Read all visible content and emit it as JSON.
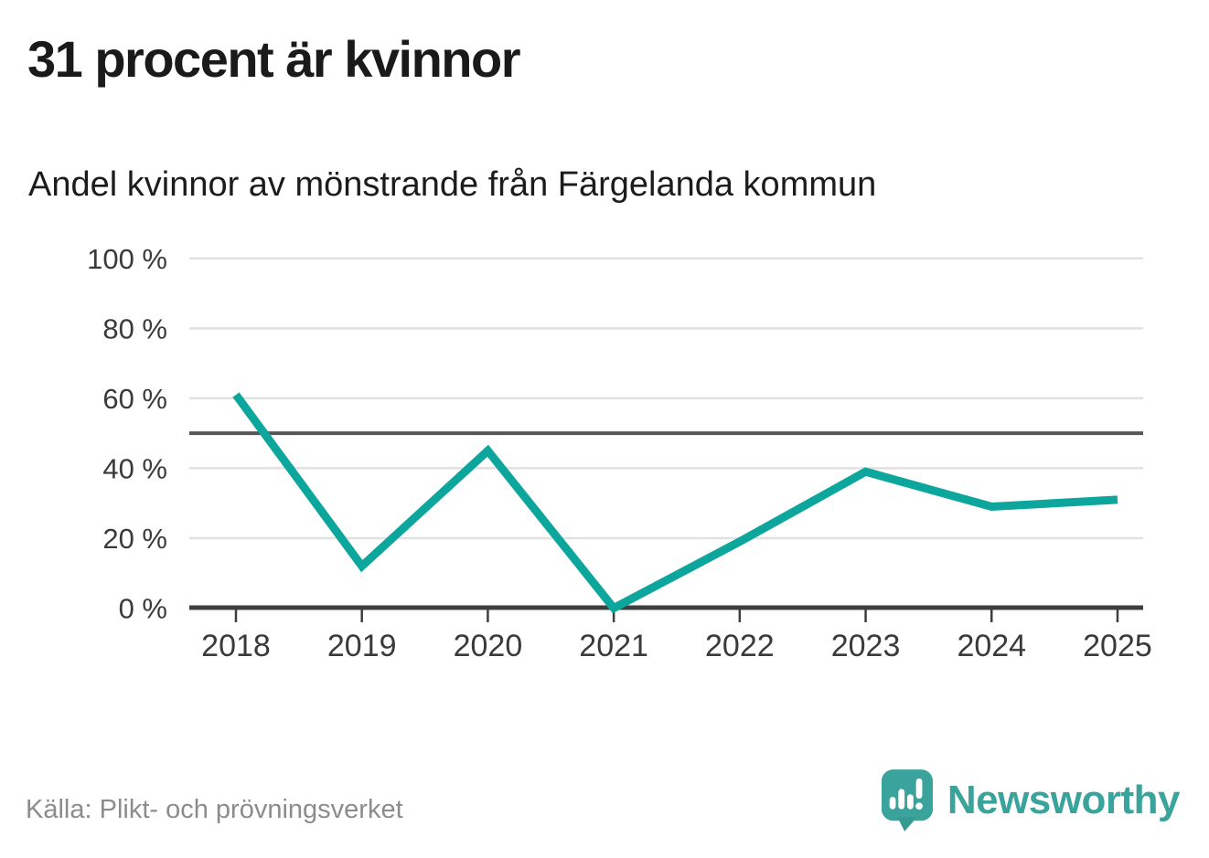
{
  "header": {
    "title": "31 procent är kvinnor",
    "subtitle": "Andel kvinnor av mönstrande från Färgelanda kommun"
  },
  "chart_data": {
    "type": "line",
    "title": "31 procent är kvinnor",
    "subtitle": "Andel kvinnor av mönstrande från Färgelanda kommun",
    "x": [
      2018,
      2019,
      2020,
      2021,
      2022,
      2023,
      2024,
      2025
    ],
    "series": [
      {
        "name": "Andel kvinnor av mönstrande",
        "values": [
          61,
          12,
          45,
          0,
          19,
          39,
          29,
          31
        ]
      }
    ],
    "unit": "%",
    "xlabel": "",
    "ylabel": "",
    "ylim": [
      0,
      100
    ],
    "yticks": [
      0,
      20,
      40,
      60,
      80,
      100
    ],
    "ytick_suffix": " %",
    "reference_line": {
      "value": 50
    },
    "grid": "horizontal",
    "legend_position": "none"
  },
  "footer": {
    "source": "Källa: Plikt- och prövningsverket",
    "logo_text": "Newsworthy"
  },
  "colors": {
    "line": "#0da69c",
    "reference_line": "#55565a",
    "grid": "#e1e1e1",
    "axis": "#3e3e3e",
    "tick_text": "#3a3a3a",
    "title_text": "#1a1a1a",
    "muted_text": "#8c8c8c",
    "brand": "#3aa39b"
  }
}
